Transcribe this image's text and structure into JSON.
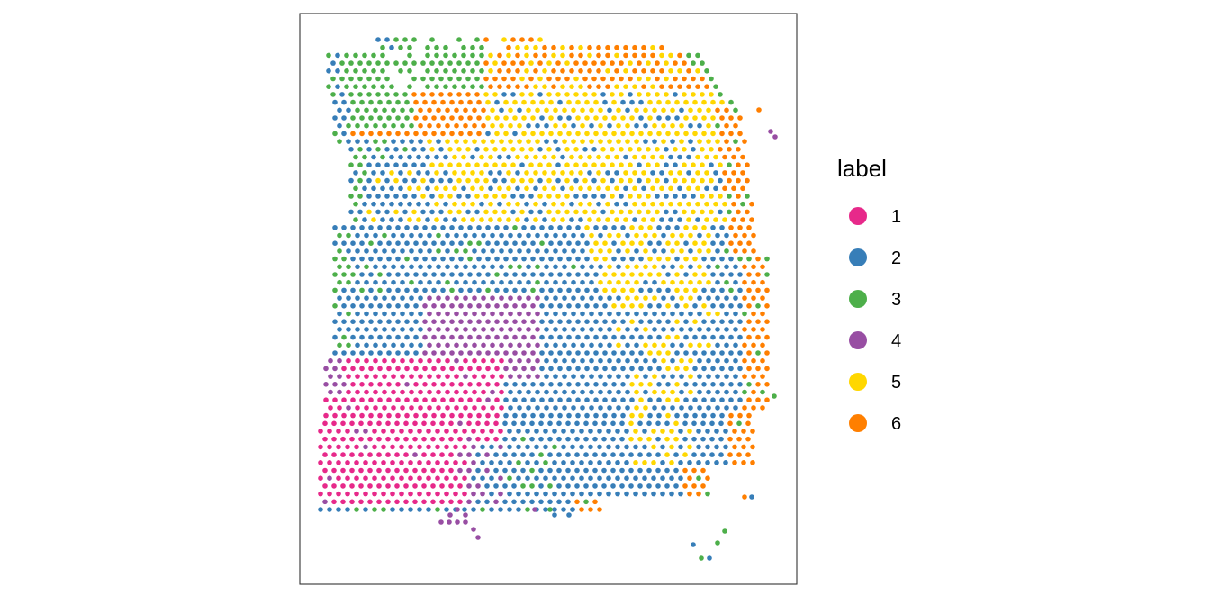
{
  "chart_data": {
    "type": "scatter",
    "title": "",
    "xlabel": "",
    "ylabel": "",
    "grid": false,
    "axes_visible": false,
    "legend_position": "right",
    "legend": {
      "title": "label",
      "entries": [
        {
          "label": "1",
          "color": "#E7298A"
        },
        {
          "label": "2",
          "color": "#377EB8"
        },
        {
          "label": "3",
          "color": "#4DAF4A"
        },
        {
          "label": "4",
          "color": "#984EA3"
        },
        {
          "label": "5",
          "color": "#FFD700"
        },
        {
          "label": "6",
          "color": "#FF7F00"
        }
      ]
    },
    "region_description": "Spatial spot map: cluster 3 along top-left rim and right edge, cluster 6 band along top and right, cluster 5 in upper centre, cluster 2 across middle and lower right, cluster 4 at middle-left boundary, cluster 1 in lower-left block."
  }
}
